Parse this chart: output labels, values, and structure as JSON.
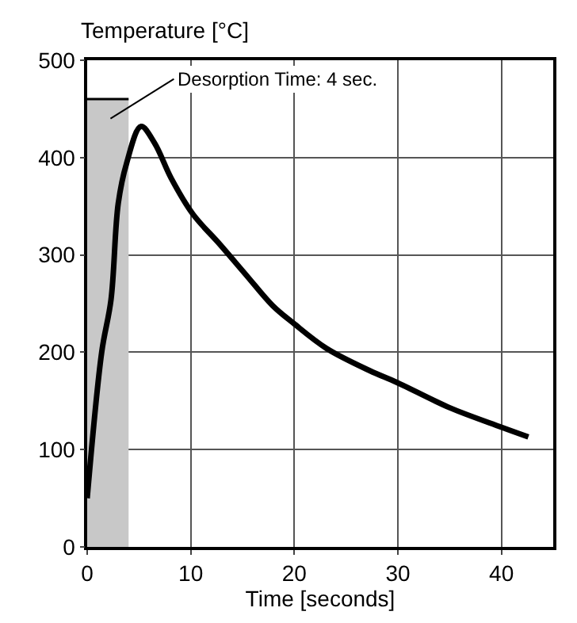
{
  "chart_data": {
    "type": "line",
    "xlabel": "Time [seconds]",
    "ylabel": "Temperature [°C]",
    "xlim": [
      0,
      45
    ],
    "xticks": [
      0,
      10,
      20,
      30,
      40
    ],
    "ylim": [
      0,
      500
    ],
    "yticks": [
      0,
      100,
      200,
      300,
      400,
      500
    ],
    "grid": true,
    "series": [
      {
        "type": "area",
        "color": "#c8c8c8",
        "x": [
          0,
          4
        ],
        "values": [
          460,
          460
        ]
      },
      {
        "color": "#000000",
        "x": [
          0,
          1.4,
          2.3,
          3.0,
          3.8,
          5.2,
          6.5,
          8.1,
          10.2,
          12.8,
          15.3,
          17.9,
          19.9,
          23.1,
          27.3,
          29.9,
          35.0,
          40.0,
          42.6
        ],
        "values": [
          50,
          200,
          254,
          353,
          394,
          432,
          415,
          379,
          342,
          311,
          280,
          248,
          230,
          204,
          181,
          169,
          143,
          123,
          113
        ]
      }
    ],
    "annotations": [
      "Desorption Time: 4 sec."
    ]
  }
}
